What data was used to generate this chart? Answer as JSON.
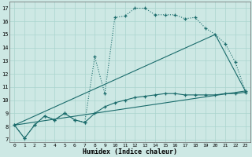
{
  "xlabel": "Humidex (Indice chaleur)",
  "bg_color": "#cde8e4",
  "line_color": "#1a6b6b",
  "grid_color": "#aad4ce",
  "xlim": [
    -0.5,
    23.5
  ],
  "ylim": [
    6.8,
    17.5
  ],
  "xticks": [
    0,
    1,
    2,
    3,
    4,
    5,
    6,
    7,
    8,
    9,
    10,
    11,
    12,
    13,
    14,
    15,
    16,
    17,
    18,
    19,
    20,
    21,
    22,
    23
  ],
  "yticks": [
    7,
    8,
    9,
    10,
    11,
    12,
    13,
    14,
    15,
    16,
    17
  ],
  "dotted_curve": {
    "x": [
      0,
      1,
      2,
      3,
      4,
      5,
      6,
      7,
      8,
      9,
      10,
      11,
      12,
      13,
      14,
      15,
      16,
      17,
      18,
      19,
      20,
      21,
      22,
      23
    ],
    "y": [
      8.1,
      7.1,
      8.1,
      8.8,
      8.5,
      9.0,
      8.5,
      8.3,
      13.3,
      10.5,
      16.3,
      16.4,
      17.0,
      17.0,
      16.5,
      16.5,
      16.5,
      16.2,
      16.3,
      15.5,
      15.0,
      14.3,
      12.9,
      10.7
    ]
  },
  "solid_curve1": {
    "x": [
      0,
      3,
      4,
      5,
      6,
      7,
      8,
      9,
      10,
      11,
      12,
      13,
      19,
      20,
      21,
      22,
      23
    ],
    "y": [
      8.1,
      8.8,
      8.5,
      9.0,
      8.5,
      8.3,
      13.3,
      10.5,
      10.8,
      11.0,
      11.2,
      11.4,
      15.5,
      15.0,
      14.3,
      12.9,
      10.7
    ]
  },
  "triangle_line": {
    "x": [
      0,
      20,
      23,
      0
    ],
    "y": [
      8.1,
      15.0,
      10.7,
      8.1
    ]
  },
  "smooth_lower": {
    "x": [
      0,
      1,
      2,
      3,
      4,
      5,
      6,
      7,
      8,
      9,
      10,
      11,
      12,
      13,
      14,
      15,
      16,
      17,
      18,
      19,
      20,
      21,
      22,
      23
    ],
    "y": [
      8.1,
      7.1,
      8.1,
      8.8,
      8.5,
      9.0,
      8.5,
      8.3,
      9.0,
      9.5,
      9.8,
      10.0,
      10.2,
      10.3,
      10.4,
      10.5,
      10.5,
      10.4,
      10.4,
      10.4,
      10.4,
      10.5,
      10.5,
      10.6
    ]
  }
}
